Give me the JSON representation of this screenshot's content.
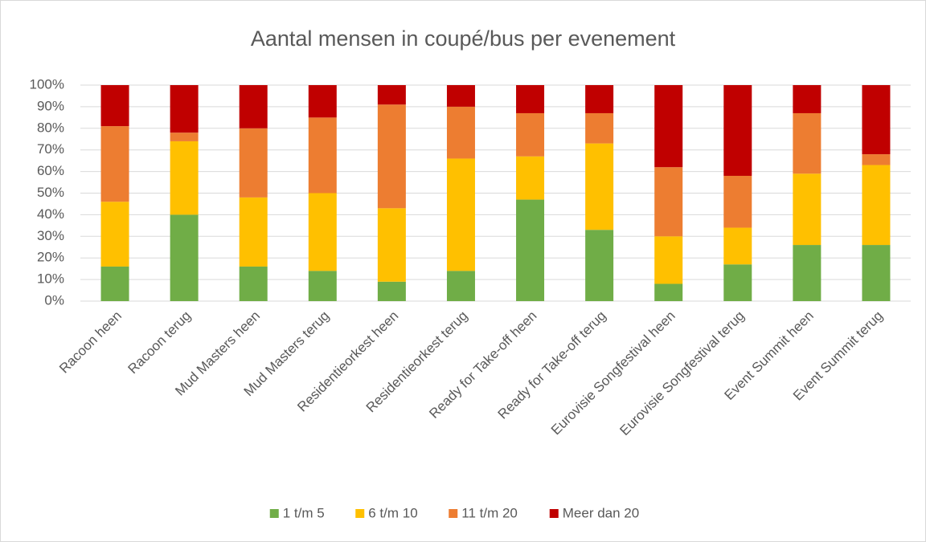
{
  "chart_data": {
    "type": "stacked_bar",
    "title": "Aantal mensen in coupé/bus per evenement",
    "categories": [
      "Racoon heen",
      "Racoon terug",
      "Mud Masters heen",
      "Mud Masters terug",
      "Residentieorkest heen",
      "Residentieorkest terug",
      "Ready for Take-off heen",
      "Ready for Take-off terug",
      "Eurovisie Songfestival heen",
      "Eurovisie Songfestival terug",
      "Event Summit heen",
      "Event Summit terug"
    ],
    "series": [
      {
        "name": "1 t/m 5",
        "color": "#70ad47",
        "values": [
          16,
          40,
          16,
          14,
          9,
          14,
          47,
          33,
          8,
          17,
          26,
          26
        ]
      },
      {
        "name": "6 t/m 10",
        "color": "#ffc000",
        "values": [
          30,
          34,
          32,
          36,
          34,
          52,
          20,
          40,
          22,
          17,
          33,
          37
        ]
      },
      {
        "name": "11 t/m 20",
        "color": "#ed7d31",
        "values": [
          35,
          4,
          32,
          35,
          48,
          24,
          20,
          14,
          32,
          24,
          28,
          5
        ]
      },
      {
        "name": "Meer dan 20",
        "color": "#c00000",
        "values": [
          19,
          22,
          20,
          15,
          9,
          10,
          13,
          13,
          38,
          42,
          13,
          32
        ]
      }
    ],
    "ylim": [
      0,
      100
    ],
    "yticks": [
      {
        "value": 0,
        "label": "0%"
      },
      {
        "value": 10,
        "label": "10%"
      },
      {
        "value": 20,
        "label": "20%"
      },
      {
        "value": 30,
        "label": "30%"
      },
      {
        "value": 40,
        "label": "40%"
      },
      {
        "value": 50,
        "label": "50%"
      },
      {
        "value": 60,
        "label": "60%"
      },
      {
        "value": 70,
        "label": "70%"
      },
      {
        "value": 80,
        "label": "80%"
      },
      {
        "value": 90,
        "label": "90%"
      },
      {
        "value": 100,
        "label": "100%"
      }
    ],
    "grid": true,
    "legend": "bottom"
  }
}
